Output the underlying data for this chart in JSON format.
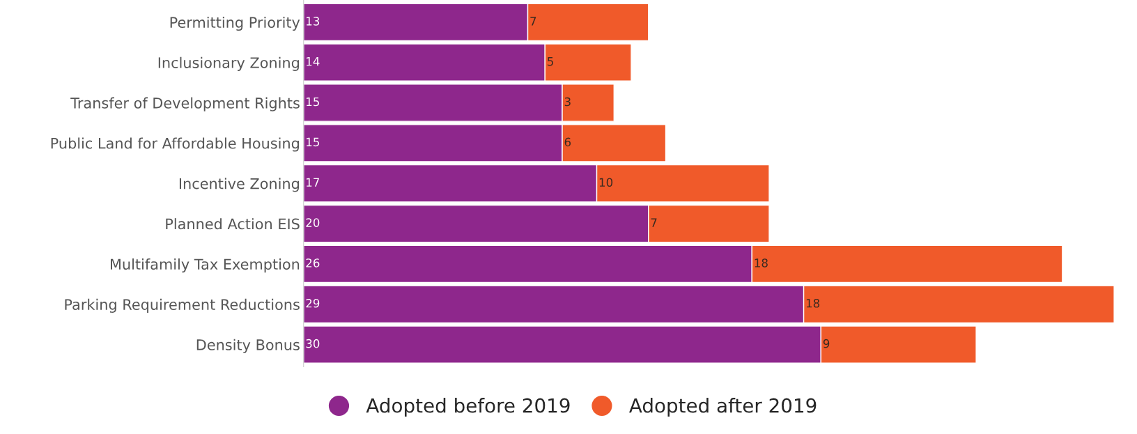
{
  "chart_data": {
    "type": "bar",
    "orientation": "horizontal",
    "stacked": true,
    "data_labels": true,
    "legend": "bottom",
    "grid": false,
    "categories": [
      "Permitting Priority",
      "Inclusionary Zoning",
      "Transfer of Development Rights",
      "Public Land for Affordable Housing",
      "Incentive Zoning",
      "Planned Action EIS",
      "Multifamily Tax Exemption",
      "Parking Requirement Reductions",
      "Density Bonus"
    ],
    "series": [
      {
        "name": "Adopted before 2019",
        "color": "#8e278c",
        "values": [
          13,
          14,
          15,
          15,
          17,
          20,
          26,
          29,
          30
        ]
      },
      {
        "name": "Adopted after 2019",
        "color": "#f05a2a",
        "values": [
          7,
          5,
          3,
          6,
          10,
          7,
          18,
          18,
          9
        ]
      }
    ]
  }
}
